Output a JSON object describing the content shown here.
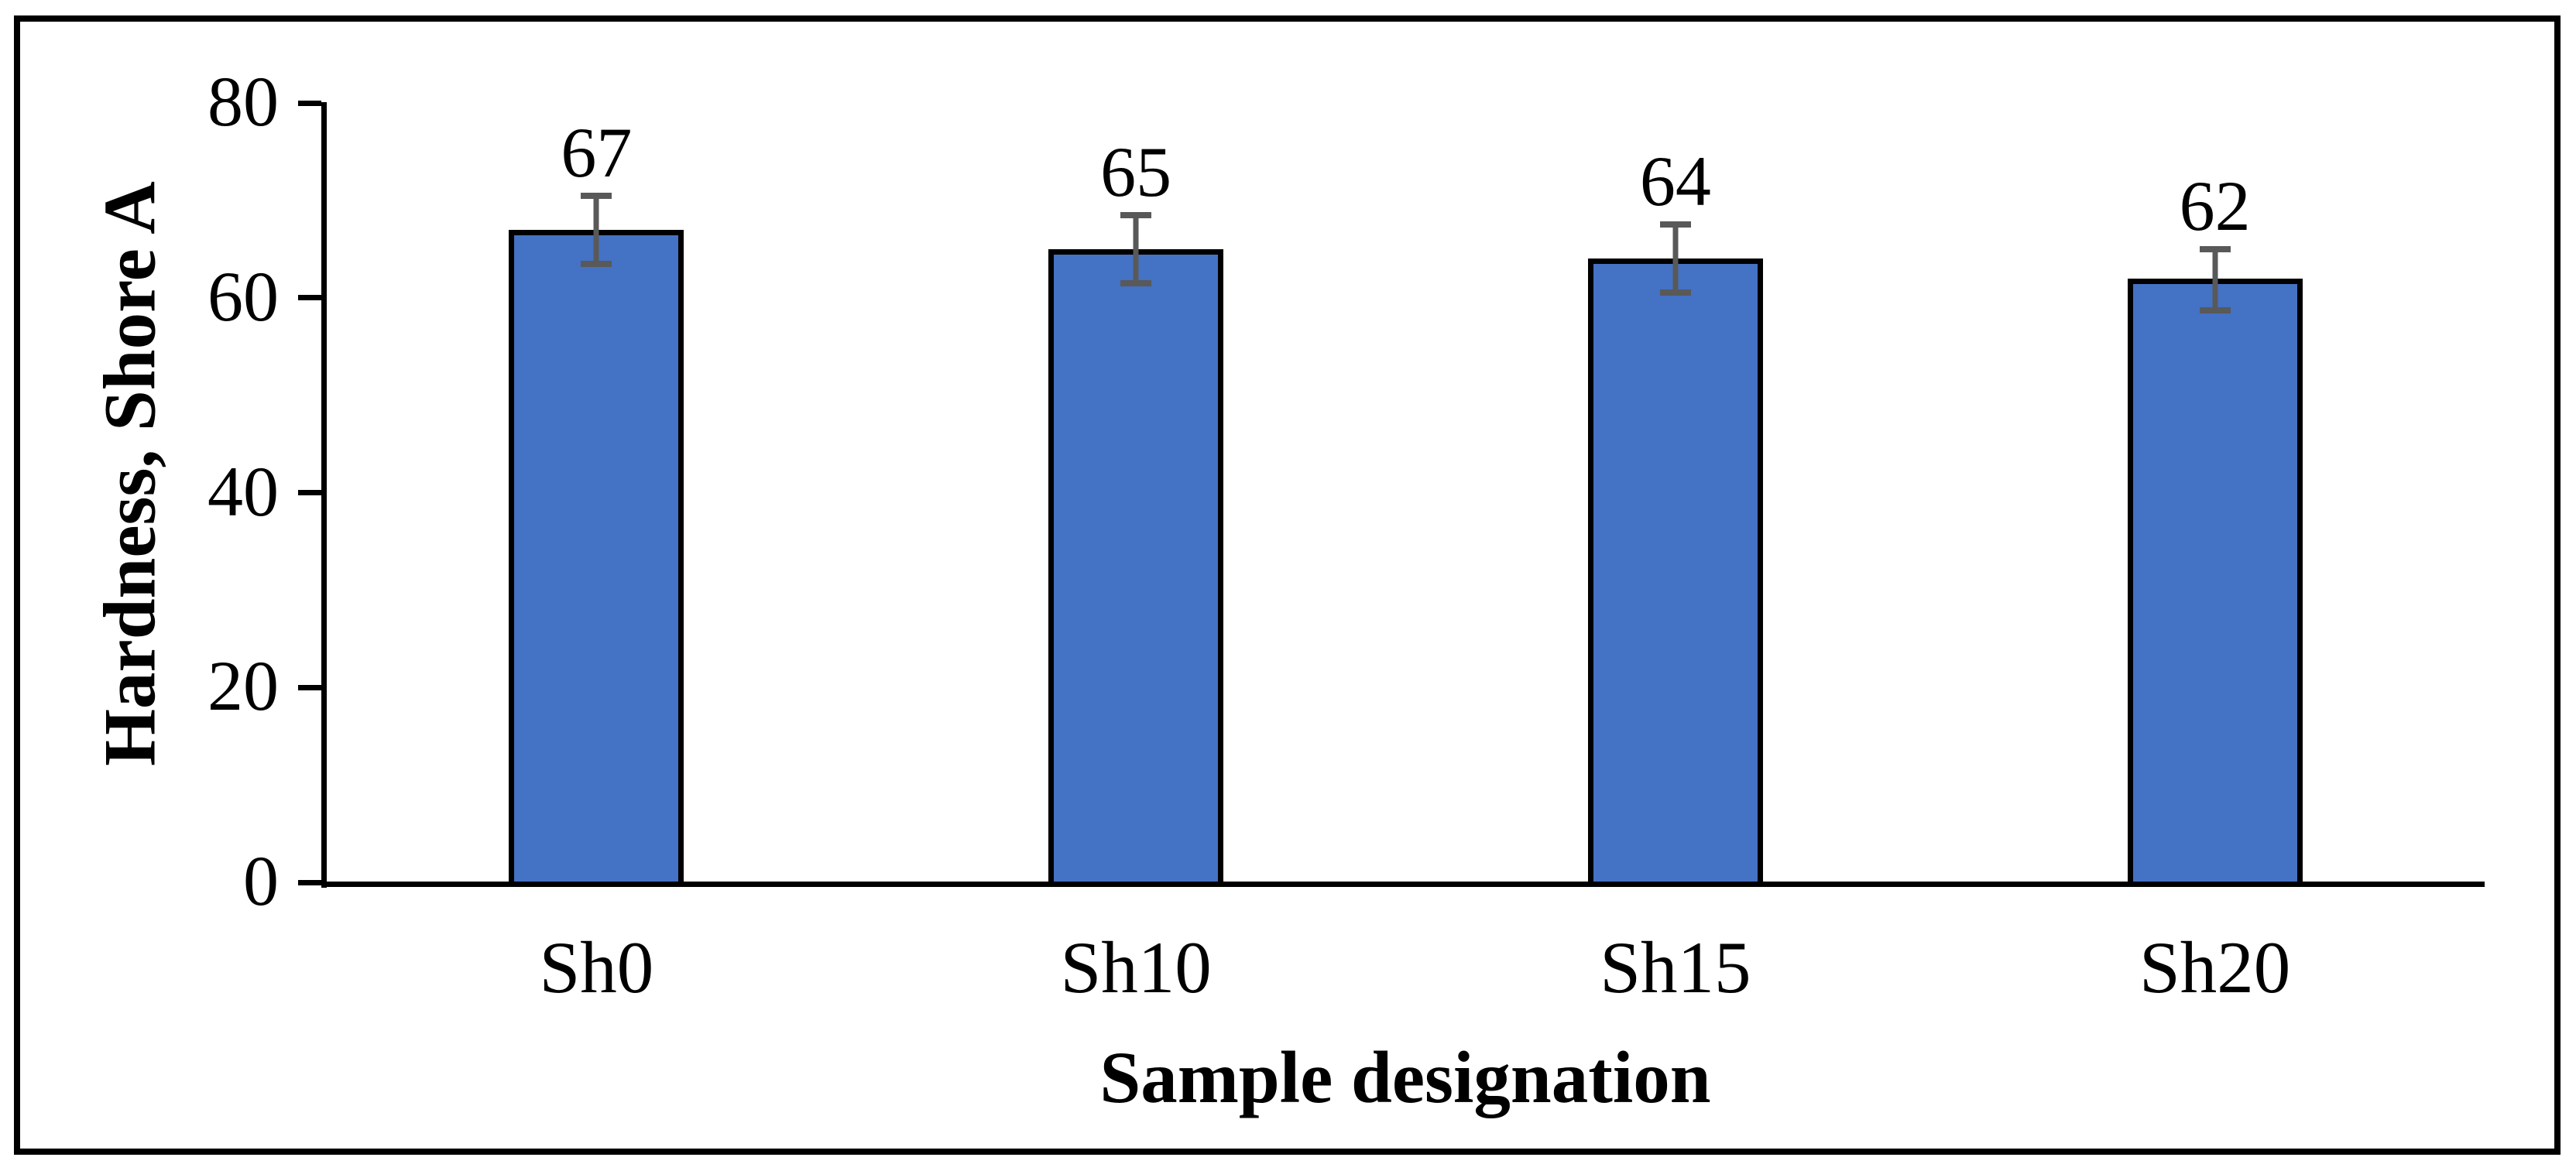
{
  "chart_data": {
    "type": "bar",
    "categories": [
      "Sh0",
      "Sh10",
      "Sh15",
      "Sh20"
    ],
    "values": [
      67,
      65,
      64,
      62
    ],
    "data_labels": [
      "67",
      "65",
      "64",
      "62"
    ],
    "errors_plus": [
      3.5,
      3.5,
      3.5,
      3
    ],
    "errors_minus": [
      3.5,
      3.5,
      3.5,
      3.3
    ],
    "title": "",
    "xlabel": "Sample designation",
    "ylabel": "Hardness, Shore A",
    "ylim": [
      0,
      80
    ],
    "yticks": [
      0,
      20,
      40,
      60,
      80
    ],
    "ytick_labels": [
      "0",
      "20",
      "40",
      "60",
      "80"
    ],
    "grid": false,
    "legend": false,
    "bar_fill_color": "#4472C4",
    "bar_outline_color": "#000000",
    "error_bar_color": "#595959",
    "axis_color": "#000000",
    "figure_border_color": "#000000",
    "background_color": "#ffffff"
  }
}
